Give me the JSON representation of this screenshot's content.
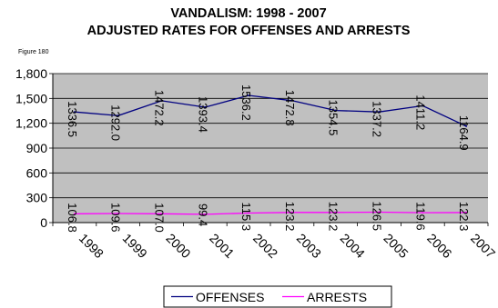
{
  "chart_data": {
    "type": "line",
    "title": "VANDALISM:  1998 - 2007",
    "subtitle": "ADJUSTED RATES FOR OFFENSES AND ARRESTS",
    "figure_label": "Figure 180",
    "categories": [
      "1998",
      "1999",
      "2000",
      "2001",
      "2002",
      "2003",
      "2004",
      "2005",
      "2006",
      "2007"
    ],
    "ylim": [
      0,
      1800
    ],
    "yticks": [
      "0",
      "300",
      "600",
      "900",
      "1,200",
      "1,500",
      "1,800"
    ],
    "ytick_values": [
      0,
      300,
      600,
      900,
      1200,
      1500,
      1800
    ],
    "grid": true,
    "plot_background": "#c0c0c0",
    "legend_position": "bottom",
    "series": [
      {
        "name": "OFFENSES",
        "color": "#000080",
        "values": [
          1336.5,
          1292.0,
          1472.2,
          1393.4,
          1536.2,
          1472.8,
          1354.5,
          1337.2,
          1411.2,
          1164.9
        ],
        "labels": [
          "1336.5",
          "1292.0",
          "1472.2",
          "1393.4",
          "1536.2",
          "1472.8",
          "1354.5",
          "1337.2",
          "1411.2",
          "1164.9"
        ]
      },
      {
        "name": "ARRESTS",
        "color": "#ff00ff",
        "values": [
          106.8,
          109.6,
          107.0,
          99.4,
          115.3,
          123.2,
          123.2,
          126.5,
          119.6,
          122.3
        ],
        "labels": [
          "106.8",
          "109.6",
          "107.0",
          "99.4",
          "115.3",
          "123.2",
          "123.2",
          "126.5",
          "119.6",
          "122.3"
        ]
      }
    ]
  }
}
